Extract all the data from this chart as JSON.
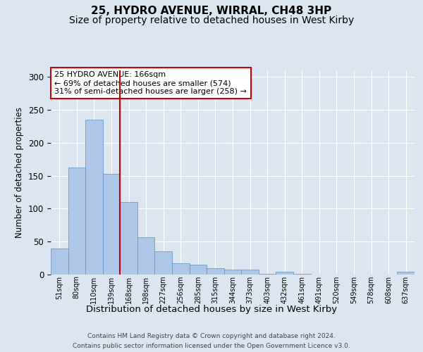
{
  "title1": "25, HYDRO AVENUE, WIRRAL, CH48 3HP",
  "title2": "Size of property relative to detached houses in West Kirby",
  "xlabel": "Distribution of detached houses by size in West Kirby",
  "ylabel": "Number of detached properties",
  "categories": [
    "51sqm",
    "80sqm",
    "110sqm",
    "139sqm",
    "168sqm",
    "198sqm",
    "227sqm",
    "256sqm",
    "285sqm",
    "315sqm",
    "344sqm",
    "373sqm",
    "403sqm",
    "432sqm",
    "461sqm",
    "491sqm",
    "520sqm",
    "549sqm",
    "578sqm",
    "608sqm",
    "637sqm"
  ],
  "values": [
    40,
    162,
    235,
    153,
    110,
    57,
    35,
    17,
    15,
    10,
    8,
    7,
    1,
    4,
    1,
    0,
    0,
    0,
    0,
    0,
    4
  ],
  "bar_color": "#aec6e8",
  "bar_edge_color": "#5a8fc0",
  "background_color": "#dce6f0",
  "grid_color": "#ffffff",
  "vline_x": 3.5,
  "vline_color": "#cc0000",
  "annotation_text": "25 HYDRO AVENUE: 166sqm\n← 69% of detached houses are smaller (574)\n31% of semi-detached houses are larger (258) →",
  "annotation_box_color": "#ffffff",
  "annotation_box_edge_color": "#cc0000",
  "footer1": "Contains HM Land Registry data © Crown copyright and database right 2024.",
  "footer2": "Contains public sector information licensed under the Open Government Licence v3.0.",
  "ylim": [
    0,
    310
  ],
  "title1_fontsize": 11,
  "title2_fontsize": 10,
  "xlabel_fontsize": 9.5,
  "ylabel_fontsize": 8.5,
  "tick_fontsize": 7,
  "annotation_fontsize": 8,
  "footer_fontsize": 6.5
}
